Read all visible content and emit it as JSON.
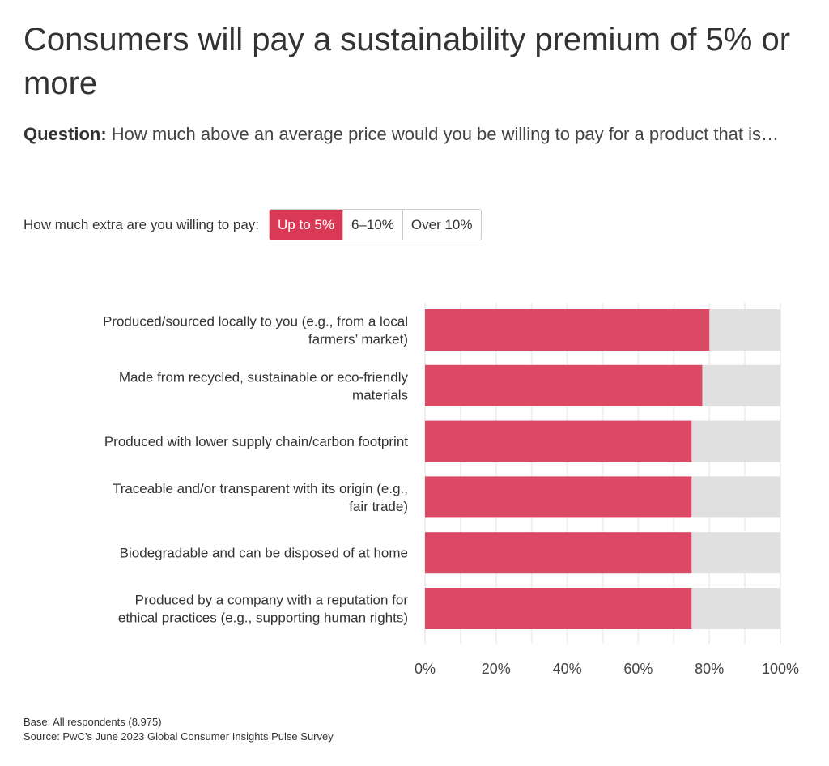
{
  "title": "Consumers will pay a sustainability premium of 5% or more",
  "question": {
    "label": "Question:",
    "text": "How much above an average price would you be willing to pay for a product that is…"
  },
  "filter": {
    "label": "How much extra are you willing to pay:",
    "options": [
      "Up to 5%",
      "6–10%",
      "Over 10%"
    ],
    "selected": "Up to 5%"
  },
  "chart_data": {
    "type": "bar",
    "orientation": "horizontal",
    "categories": [
      [
        "Produced/sourced locally to you (e.g., from a local",
        "farmers’ market)"
      ],
      [
        "Made from recycled, sustainable or eco-friendly",
        "materials"
      ],
      [
        "Produced with lower supply chain/carbon footprint"
      ],
      [
        "Traceable and/or transparent with its origin (e.g.,",
        "fair trade)"
      ],
      [
        "Biodegradable and can be disposed of at home"
      ],
      [
        "Produced by a company with a reputation for",
        "ethical practices (e.g., supporting human rights)"
      ]
    ],
    "values": [
      80,
      78,
      75,
      75,
      75,
      75
    ],
    "xlim": [
      0,
      100
    ],
    "xticks": [
      "0%",
      "20%",
      "40%",
      "60%",
      "80%",
      "100%"
    ],
    "grid": true,
    "colors": {
      "bar": "#dc4964",
      "background": "#e0e0e0",
      "grid": "#efefef"
    }
  },
  "footer": {
    "base": "Base: All respondents (8.975)",
    "source": "Source: PwC’s June 2023 Global Consumer Insights Pulse Survey"
  }
}
